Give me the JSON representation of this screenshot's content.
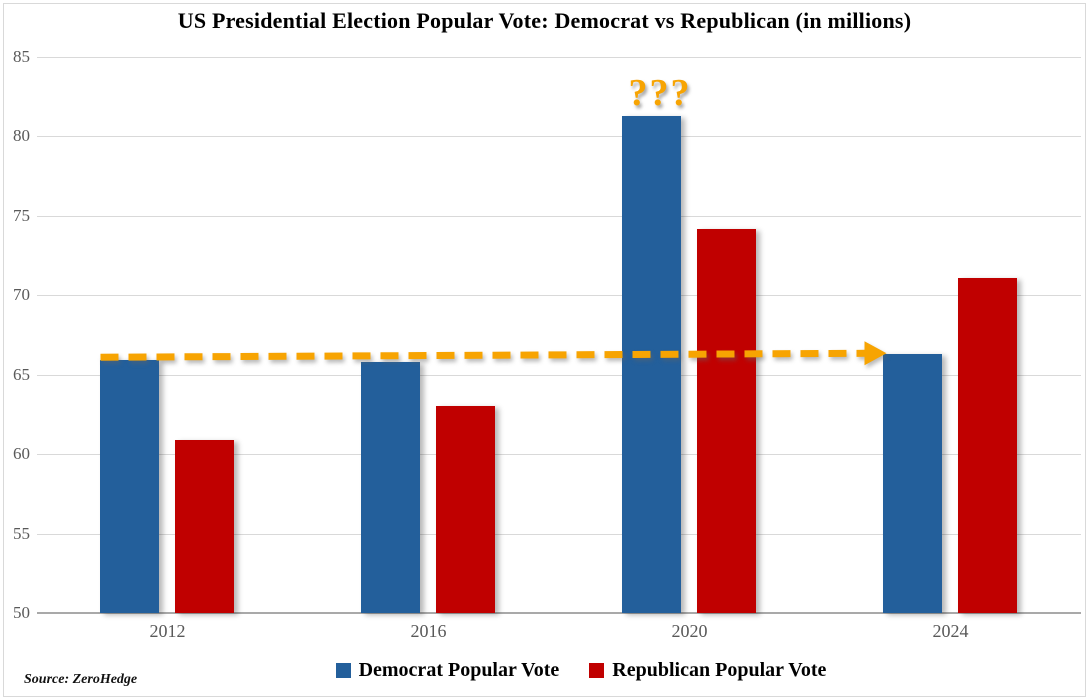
{
  "title": "US Presidential Election Popular Vote: Democrat vs Republican (in millions)",
  "source": "Source: ZeroHedge",
  "colors": {
    "democrat": "#235F9B",
    "republican": "#C00000",
    "annotation_orange": "#F7A402",
    "gridline": "#D9D9D9",
    "axis_line": "#A9A9A9",
    "tick_text": "#595959"
  },
  "chart_data": {
    "type": "bar",
    "categories": [
      "2012",
      "2016",
      "2020",
      "2024"
    ],
    "series": [
      {
        "name": "Democrat Popular Vote",
        "color": "#235F9B",
        "values": [
          65.9,
          65.8,
          81.3,
          66.3
        ]
      },
      {
        "name": "Republican Popular Vote",
        "color": "#C00000",
        "values": [
          60.9,
          63.0,
          74.2,
          71.1
        ]
      }
    ],
    "title": "US Presidential Election Popular Vote: Democrat vs Republican (in millions)",
    "xlabel": "",
    "ylabel": "",
    "ylim": [
      50,
      85
    ],
    "ytick_step": 5,
    "grid": "horizontal",
    "legend_position": "bottom",
    "annotations": [
      {
        "type": "text",
        "text": "???",
        "category": "2020",
        "series": "Democrat Popular Vote",
        "color": "#F7A402"
      },
      {
        "type": "dashed-arrow",
        "from_category": "2012",
        "to_category": "2024",
        "value_start": 66.1,
        "value_end": 66.35,
        "color": "#F7A402"
      }
    ]
  }
}
